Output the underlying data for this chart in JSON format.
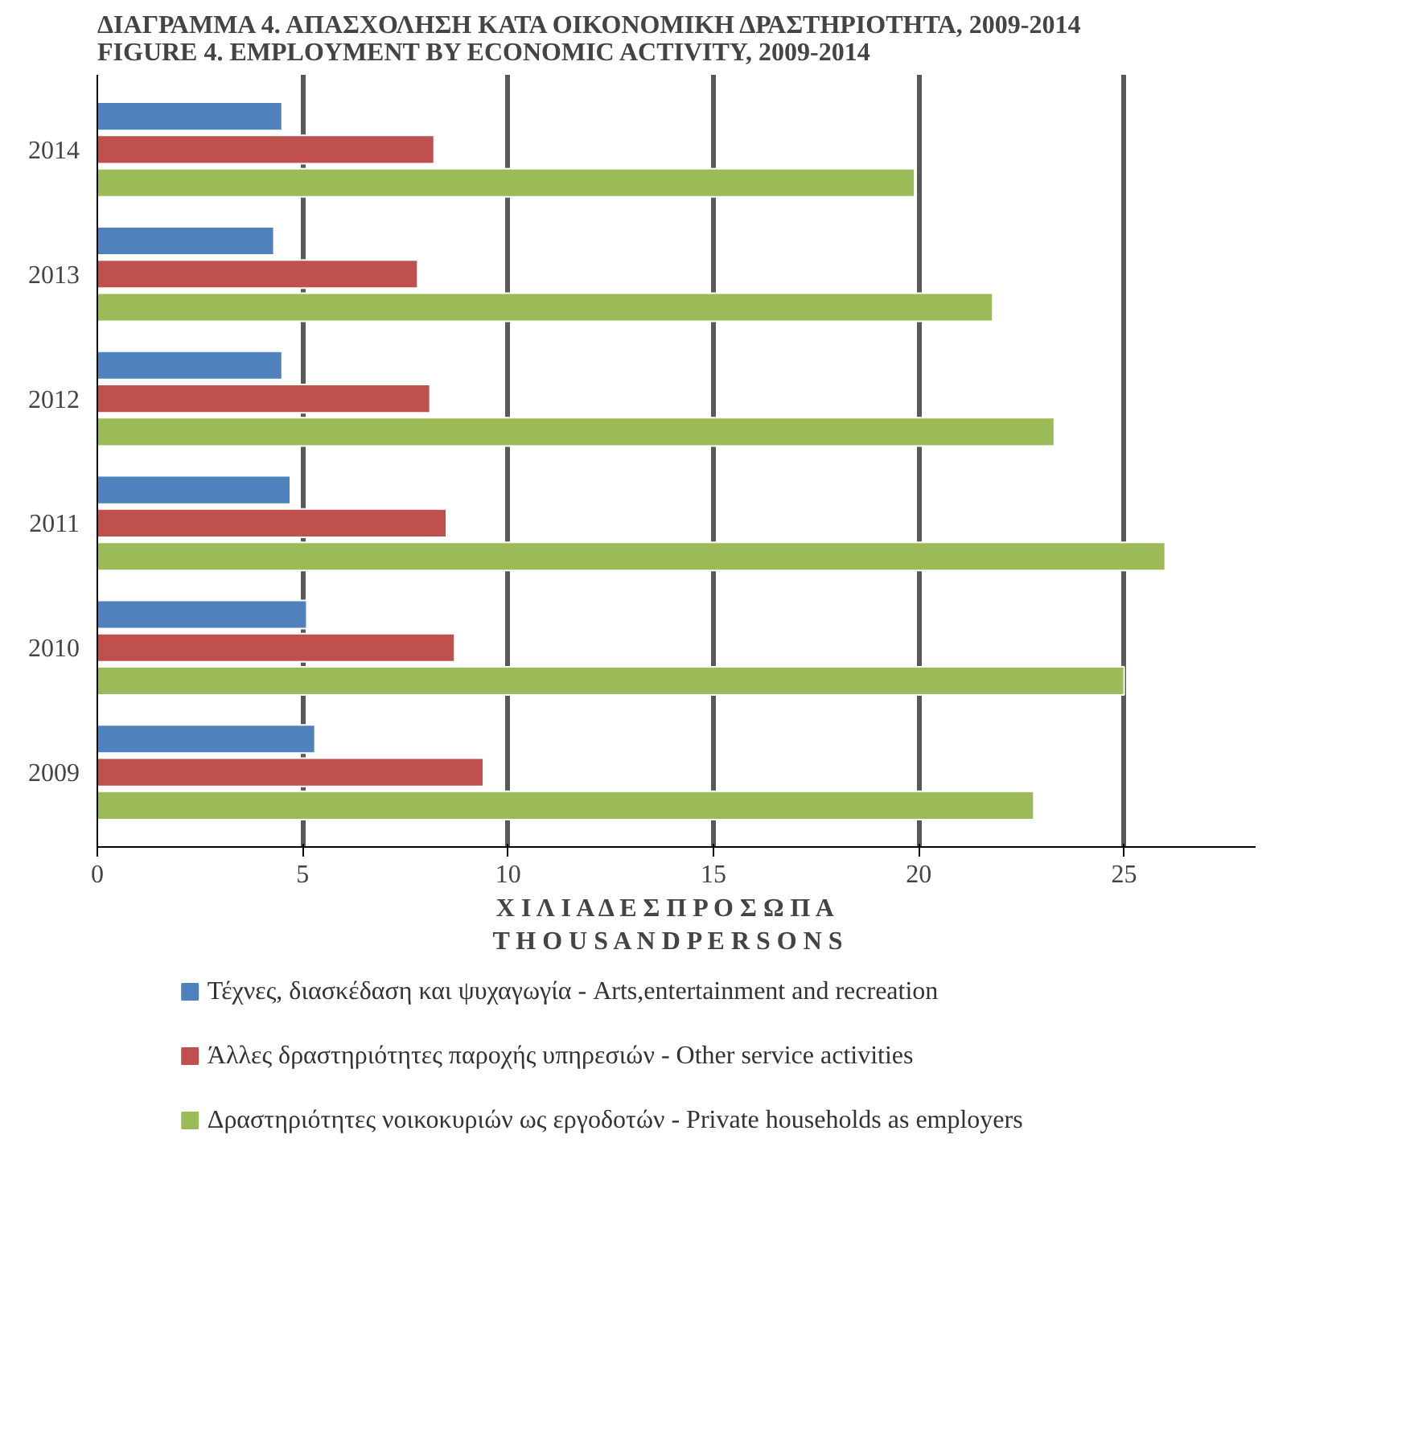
{
  "chart_data": {
    "type": "bar",
    "orientation": "horizontal",
    "title": "ΔΙΑΓΡΑΜΜΑ 4. ΑΠΑΣΧΟΛΗΣΗ ΚΑΤΑ ΟΙΚΟΝΟΜΙΚΗ ΔΡΑΣΤΗΡΙΟΤΗΤΑ, 2009-2014\nFIGURE 4. EMPLOYMENT BY ECONOMIC ACTIVITY, 2009-2014",
    "xlabel": "Χ Ι Λ Ι Α Δ Ε Σ   Π Ρ Ο Σ Ω Π Α\nT H O U S A N D   P E R S O N S",
    "categories": [
      "2014",
      "2013",
      "2012",
      "2011",
      "2010",
      "2009"
    ],
    "series": [
      {
        "name": "Τέχνες, διασκέδαση και ψυχαγωγία - Arts,entertainment and recreation",
        "color": "#4f81bd",
        "values": [
          4.5,
          4.3,
          4.5,
          4.7,
          5.1,
          5.3
        ]
      },
      {
        "name": "Άλλες δραστηριότητες παροχής υπηρεσιών - Other service activities",
        "color": "#c0504d",
        "values": [
          8.2,
          7.8,
          8.1,
          8.5,
          8.7,
          9.4
        ]
      },
      {
        "name": "Δραστηριότητες νοικοκυριών ως εργοδοτών - Private households as employers",
        "color": "#9bbb59",
        "values": [
          19.9,
          21.8,
          23.3,
          26.0,
          25.0,
          22.8
        ]
      }
    ],
    "xlim": [
      0,
      28.2
    ],
    "xticks": [
      0,
      5,
      10,
      15,
      20,
      25
    ],
    "grid": "x",
    "legend": "bottom"
  }
}
